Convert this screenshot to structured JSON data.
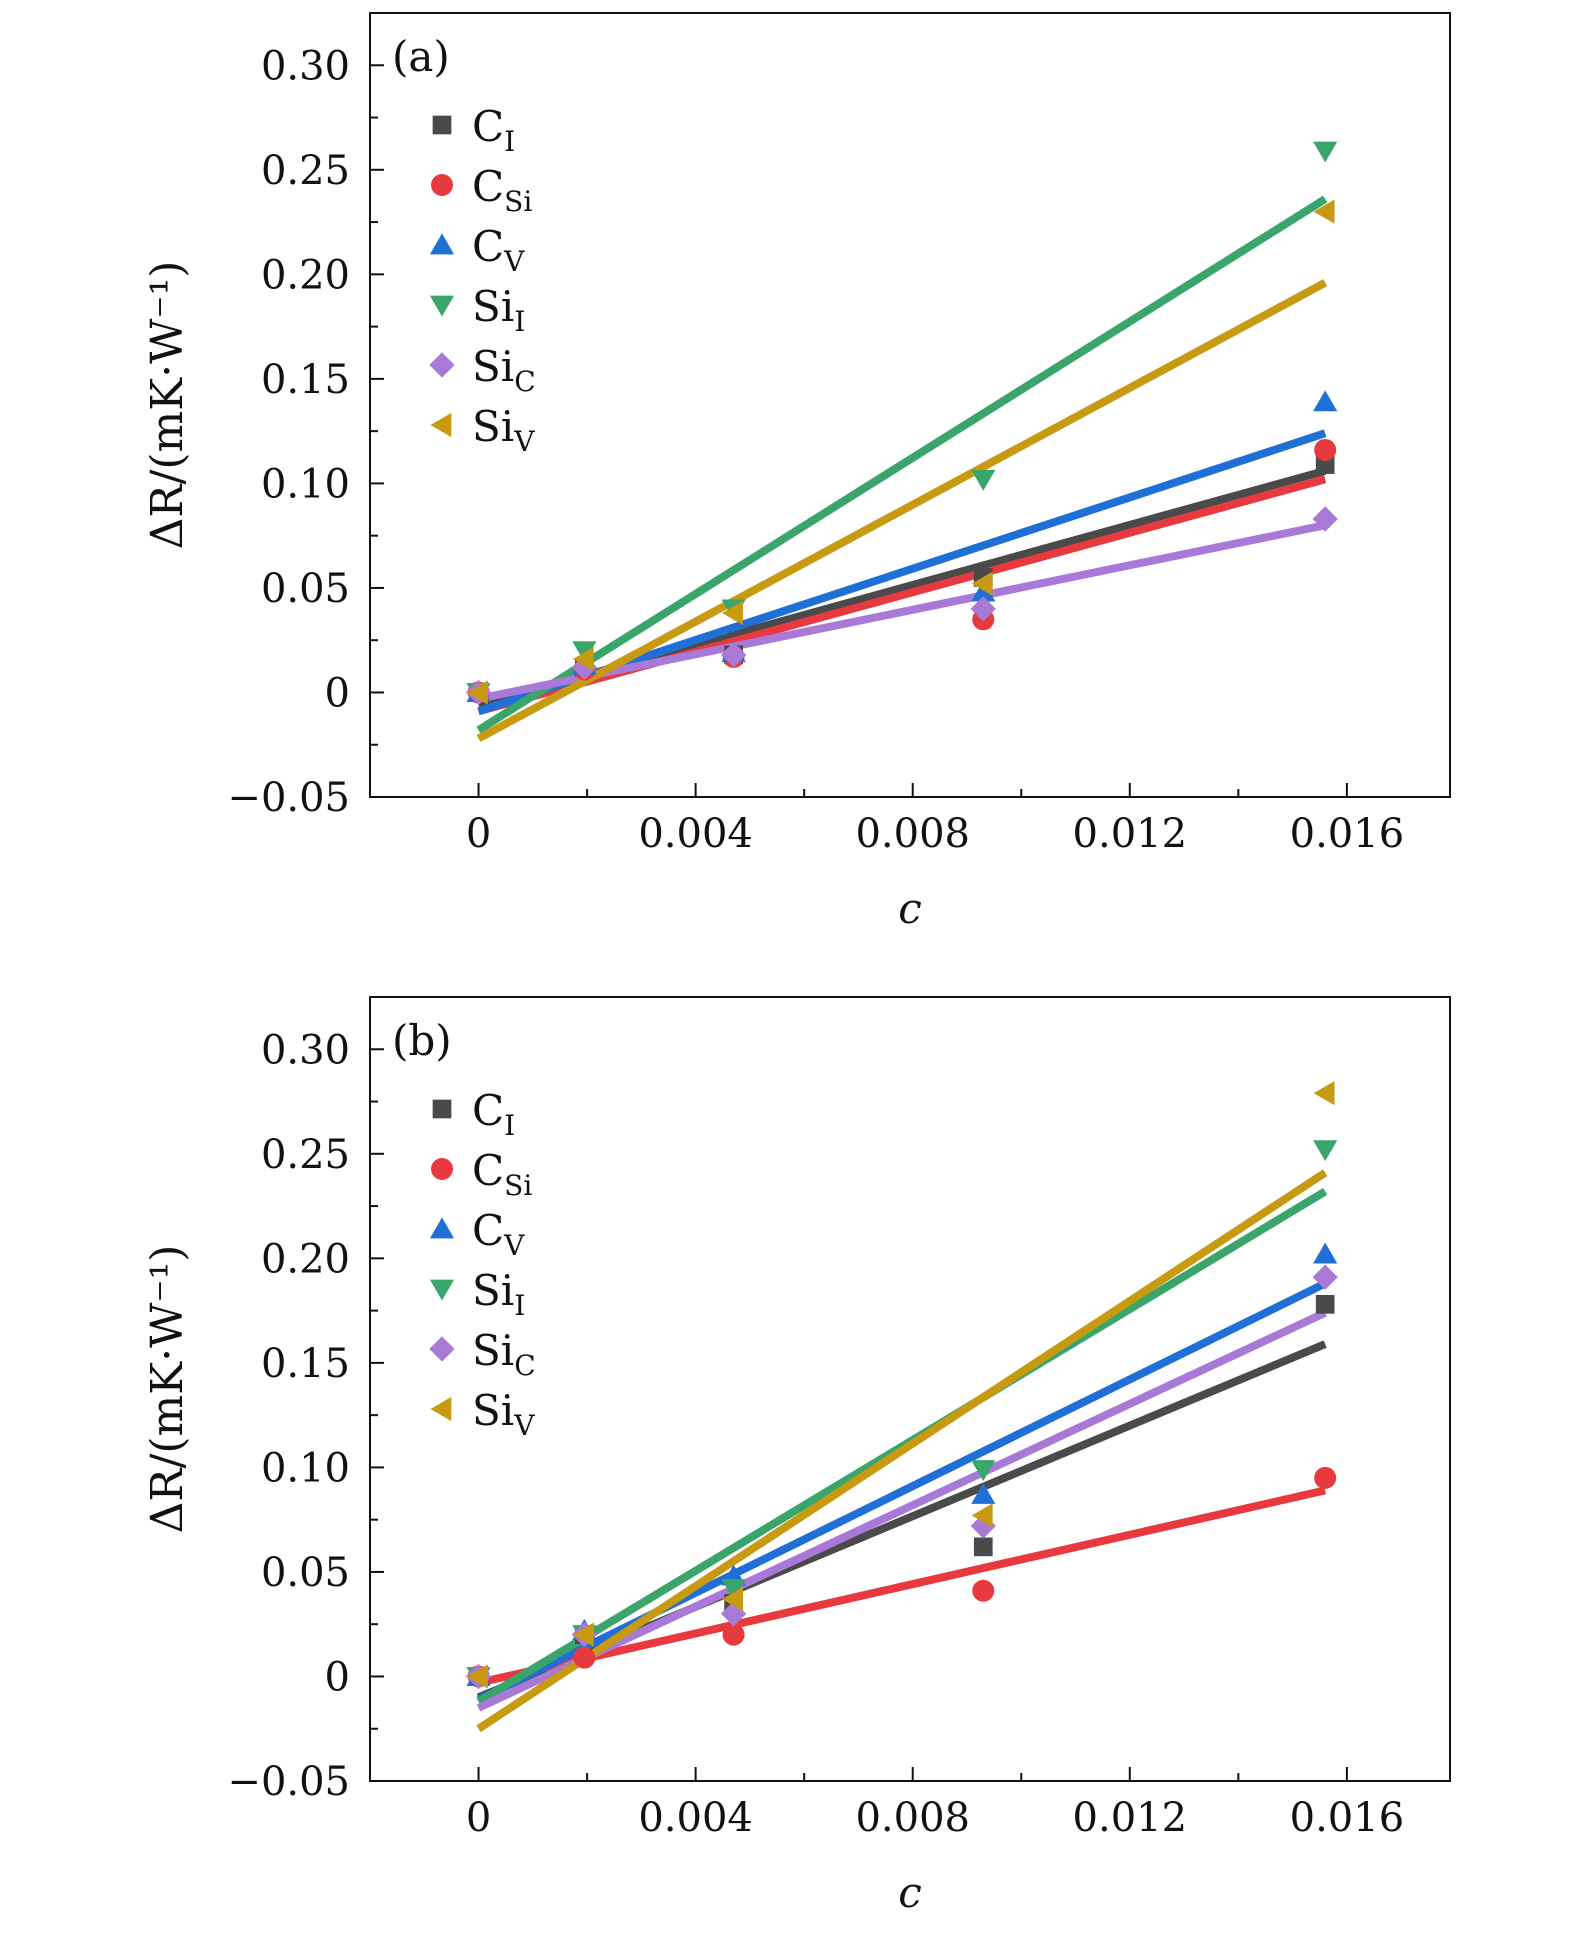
{
  "chart_data": [
    {
      "panel_label": "(a)",
      "type": "scatter",
      "xlabel": "c",
      "ylabel": "ΔR/(mK·W⁻¹)",
      "xlim": [
        -0.002,
        0.0179
      ],
      "ylim": [
        -0.05,
        0.325
      ],
      "xticks": [
        0,
        0.004,
        0.008,
        0.012,
        0.016
      ],
      "xtick_labels": [
        "0",
        "0.004",
        "0.008",
        "0.012",
        "0.016"
      ],
      "yticks": [
        -0.05,
        0,
        0.05,
        0.1,
        0.15,
        0.2,
        0.25,
        0.3
      ],
      "ytick_labels": [
        "−0.05",
        "0",
        "0.05",
        "0.10",
        "0.15",
        "0.20",
        "0.25",
        "0.30"
      ],
      "legend_position": "top-left",
      "grid": false,
      "series": [
        {
          "name": "C",
          "subscript": "I",
          "marker": "square",
          "color": "#4a4a4a",
          "x": [
            0,
            0.00195,
            0.0047,
            0.0093,
            0.0156
          ],
          "y": [
            0,
            0.012,
            0.018,
            0.055,
            0.109
          ],
          "fit": [
            [
              0,
              -0.006
            ],
            [
              0.0156,
              0.106
            ]
          ]
        },
        {
          "name": "C",
          "subscript": "Si",
          "marker": "circle",
          "color": "#e8393e",
          "x": [
            0,
            0.00195,
            0.0047,
            0.0093,
            0.0156
          ],
          "y": [
            0,
            0.011,
            0.017,
            0.035,
            0.116
          ],
          "fit": [
            [
              0,
              -0.009
            ],
            [
              0.0156,
              0.102
            ]
          ]
        },
        {
          "name": "C",
          "subscript": "V",
          "marker": "triangle-up",
          "color": "#1f6fd6",
          "x": [
            0,
            0.00195,
            0.0047,
            0.0093,
            0.0156
          ],
          "y": [
            0,
            0.013,
            0.019,
            0.048,
            0.139
          ],
          "fit": [
            [
              0,
              -0.009
            ],
            [
              0.0156,
              0.124
            ]
          ]
        },
        {
          "name": "Si",
          "subscript": "I",
          "marker": "triangle-down",
          "color": "#3aa56b",
          "x": [
            0,
            0.00195,
            0.0047,
            0.0093,
            0.0156
          ],
          "y": [
            0,
            0.02,
            0.04,
            0.102,
            0.259
          ],
          "fit": [
            [
              0,
              -0.018
            ],
            [
              0.0156,
              0.236
            ]
          ]
        },
        {
          "name": "Si",
          "subscript": "C",
          "marker": "diamond",
          "color": "#a979d8",
          "x": [
            0,
            0.00195,
            0.0047,
            0.0093,
            0.0156
          ],
          "y": [
            0,
            0.012,
            0.018,
            0.04,
            0.083
          ],
          "fit": [
            [
              0,
              -0.003
            ],
            [
              0.0156,
              0.08
            ]
          ]
        },
        {
          "name": "Si",
          "subscript": "V",
          "marker": "triangle-left",
          "color": "#c89a12",
          "x": [
            0,
            0.00195,
            0.0047,
            0.0093,
            0.0156
          ],
          "y": [
            0,
            0.016,
            0.038,
            0.052,
            0.23
          ],
          "fit": [
            [
              0,
              -0.022
            ],
            [
              0.0156,
              0.196
            ]
          ]
        }
      ]
    },
    {
      "panel_label": "(b)",
      "type": "scatter",
      "xlabel": "c",
      "ylabel": "ΔR/(mK·W⁻¹)",
      "xlim": [
        -0.002,
        0.0179
      ],
      "ylim": [
        -0.05,
        0.325
      ],
      "xticks": [
        0,
        0.004,
        0.008,
        0.012,
        0.016
      ],
      "xtick_labels": [
        "0",
        "0.004",
        "0.008",
        "0.012",
        "0.016"
      ],
      "yticks": [
        -0.05,
        0,
        0.05,
        0.1,
        0.15,
        0.2,
        0.25,
        0.3
      ],
      "ytick_labels": [
        "−0.05",
        "0",
        "0.05",
        "0.10",
        "0.15",
        "0.20",
        "0.25",
        "0.30"
      ],
      "legend_position": "top-left",
      "grid": false,
      "series": [
        {
          "name": "C",
          "subscript": "I",
          "marker": "square",
          "color": "#4a4a4a",
          "x": [
            0,
            0.00195,
            0.0047,
            0.0093,
            0.0156
          ],
          "y": [
            0,
            0.02,
            0.035,
            0.062,
            0.178
          ],
          "fit": [
            [
              0,
              -0.01
            ],
            [
              0.0156,
              0.159
            ]
          ]
        },
        {
          "name": "C",
          "subscript": "Si",
          "marker": "circle",
          "color": "#e8393e",
          "x": [
            0,
            0.00195,
            0.0047,
            0.0093,
            0.0156
          ],
          "y": [
            0,
            0.009,
            0.02,
            0.041,
            0.095
          ],
          "fit": [
            [
              0,
              -0.003
            ],
            [
              0.0156,
              0.089
            ]
          ]
        },
        {
          "name": "C",
          "subscript": "V",
          "marker": "triangle-up",
          "color": "#1f6fd6",
          "x": [
            0,
            0.00195,
            0.0047,
            0.0093,
            0.0156
          ],
          "y": [
            0,
            0.022,
            0.048,
            0.087,
            0.202
          ],
          "fit": [
            [
              0,
              -0.011
            ],
            [
              0.0156,
              0.188
            ]
          ]
        },
        {
          "name": "Si",
          "subscript": "I",
          "marker": "triangle-down",
          "color": "#3aa56b",
          "x": [
            0,
            0.00195,
            0.0047,
            0.0093,
            0.0156
          ],
          "y": [
            0,
            0.02,
            0.042,
            0.099,
            0.252
          ],
          "fit": [
            [
              0,
              -0.012
            ],
            [
              0.0156,
              0.232
            ]
          ]
        },
        {
          "name": "Si",
          "subscript": "C",
          "marker": "diamond",
          "color": "#a979d8",
          "x": [
            0,
            0.00195,
            0.0047,
            0.0093,
            0.0156
          ],
          "y": [
            0,
            0.02,
            0.03,
            0.072,
            0.191
          ],
          "fit": [
            [
              0,
              -0.015
            ],
            [
              0.0156,
              0.174
            ]
          ]
        },
        {
          "name": "Si",
          "subscript": "V",
          "marker": "triangle-left",
          "color": "#c89a12",
          "x": [
            0,
            0.00195,
            0.0047,
            0.0093,
            0.0156
          ],
          "y": [
            0,
            0.02,
            0.037,
            0.077,
            0.279
          ],
          "fit": [
            [
              0,
              -0.025
            ],
            [
              0.0156,
              0.241
            ]
          ]
        }
      ]
    }
  ]
}
